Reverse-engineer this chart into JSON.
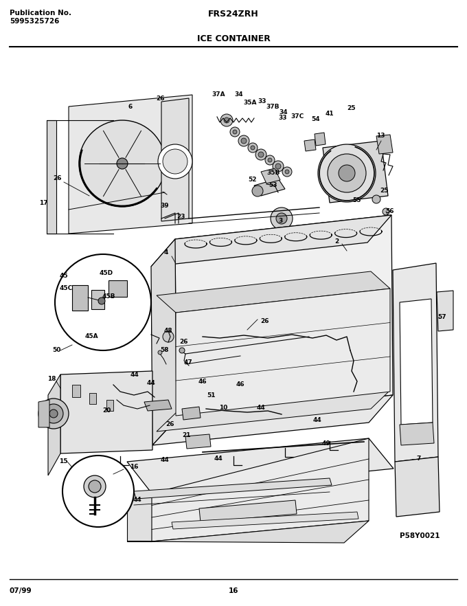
{
  "title_left_line1": "Publication No.",
  "title_left_line2": "5995325726",
  "title_center": "FRS24ZRH",
  "subtitle": "ICE CONTAINER",
  "footer_left": "07/99",
  "footer_center": "16",
  "watermark": "P58Y0021",
  "bg_color": "#ffffff",
  "fig_width": 6.8,
  "fig_height": 8.82,
  "dpi": 100,
  "border_color": "#000000",
  "diagram_gray": "#c8c8c8",
  "diagram_light": "#e8e8e8",
  "diagram_mid": "#d0d0d0",
  "diagram_dark_fill": "#a0a0a0",
  "line_color": "#000000"
}
